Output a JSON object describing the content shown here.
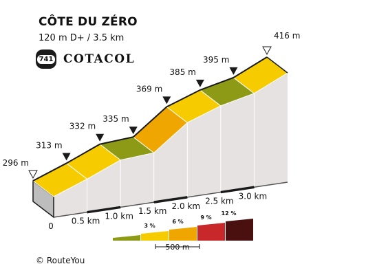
{
  "header": {
    "title": "CÔTE DU ZÉRO",
    "subtitle": "120 m D+ / 3.5 km"
  },
  "logo": {
    "badge": "741",
    "text": "COTACOL"
  },
  "credit": "© RouteYou",
  "colors": {
    "grade_0_3": "#8c9a16",
    "grade_3_6": "#f6cc00",
    "grade_6_9": "#f0a600",
    "grade_9_12": "#c8282a",
    "grade_12_plus": "#4a1010",
    "side": "#e6e2e2",
    "outline": "#1a1a1a"
  },
  "chart_data": {
    "type": "area",
    "title": "CÔTE DU ZÉRO",
    "subtitle": "120 m D+ / 3.5 km",
    "xunit": "km",
    "x_ticks": [
      {
        "value": 0,
        "label": "0"
      },
      {
        "value": 0.5,
        "label": "0.5 km"
      },
      {
        "value": 1.0,
        "label": "1.0 km"
      },
      {
        "value": 1.5,
        "label": "1.5 km"
      },
      {
        "value": 2.0,
        "label": "2.0 km"
      },
      {
        "value": 2.5,
        "label": "2.5 km"
      },
      {
        "value": 3.0,
        "label": "3.0 km"
      }
    ],
    "points": [
      {
        "x": 0.0,
        "elevation": 296,
        "label": "296 m",
        "marker": "start"
      },
      {
        "x": 0.5,
        "elevation": 313,
        "label": "313 m",
        "marker": "point"
      },
      {
        "x": 1.0,
        "elevation": 332,
        "label": "332 m",
        "marker": "point"
      },
      {
        "x": 1.5,
        "elevation": 335,
        "label": "335 m",
        "marker": "point"
      },
      {
        "x": 2.0,
        "elevation": 369,
        "label": "369 m",
        "marker": "point"
      },
      {
        "x": 2.5,
        "elevation": 385,
        "label": "385 m",
        "marker": "point"
      },
      {
        "x": 3.0,
        "elevation": 395,
        "label": "395 m",
        "marker": "point"
      },
      {
        "x": 3.5,
        "elevation": 416,
        "label": "416 m",
        "marker": "end"
      }
    ],
    "segments": [
      {
        "from": 0.0,
        "to": 0.5,
        "grade_class": "grade_3_6"
      },
      {
        "from": 0.5,
        "to": 1.0,
        "grade_class": "grade_3_6"
      },
      {
        "from": 1.0,
        "to": 1.5,
        "grade_class": "grade_0_3"
      },
      {
        "from": 1.5,
        "to": 2.0,
        "grade_class": "grade_6_9"
      },
      {
        "from": 2.0,
        "to": 2.5,
        "grade_class": "grade_3_6"
      },
      {
        "from": 2.5,
        "to": 3.0,
        "grade_class": "grade_0_3"
      },
      {
        "from": 3.0,
        "to": 3.5,
        "grade_class": "grade_3_6"
      }
    ],
    "legend": {
      "items": [
        {
          "grade_class": "grade_0_3",
          "label": ""
        },
        {
          "grade_class": "grade_3_6",
          "label": "3 %"
        },
        {
          "grade_class": "grade_6_9",
          "label": "6 %"
        },
        {
          "grade_class": "grade_9_12",
          "label": "9 %"
        },
        {
          "grade_class": "grade_12_plus",
          "label": "12 %"
        }
      ],
      "scale_label": "500 m"
    }
  }
}
